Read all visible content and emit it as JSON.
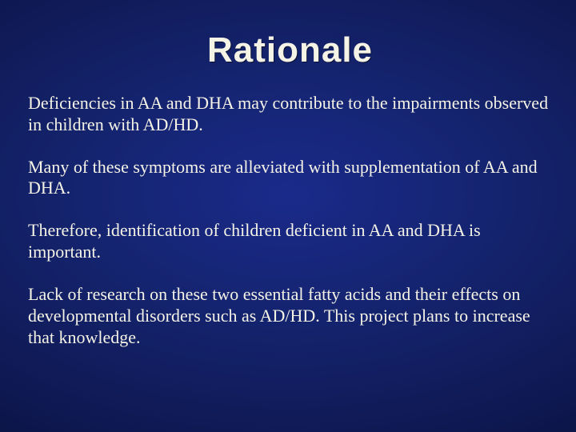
{
  "slide": {
    "title": "Rationale",
    "title_fontsize": 44,
    "title_color": "#f5f3e6",
    "body_color": "#f5f3e6",
    "body_fontsize": 22,
    "paragraphs": [
      "Deficiencies in AA and DHA  may contribute to the impairments observed in children with AD/HD.",
      "Many of these symptoms are alleviated with supplementation of AA and DHA.",
      "Therefore, identification of children deficient in AA and DHA is important.",
      "Lack of research on these two essential fatty acids and their effects on developmental disorders such as AD/HD.  This project plans to increase that knowledge."
    ],
    "background": {
      "type": "radial-gradient",
      "center_color": "#1a2a8a",
      "mid_color": "#0e1850",
      "edge_color": "#030618"
    }
  }
}
